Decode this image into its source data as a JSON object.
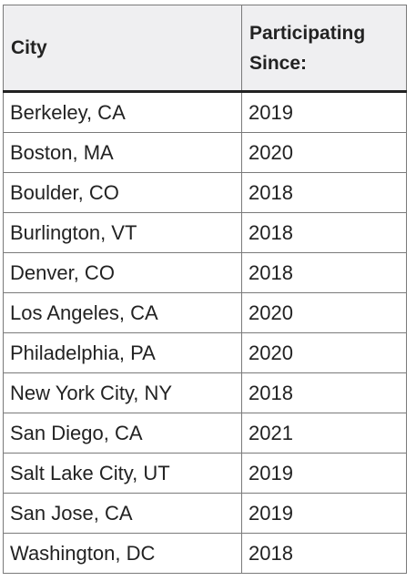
{
  "table": {
    "headers": [
      "City",
      "Participating Since:"
    ],
    "rows": [
      {
        "city": "Berkeley, CA",
        "since": "2019"
      },
      {
        "city": "Boston, MA",
        "since": "2020"
      },
      {
        "city": "Boulder, CO",
        "since": "2018"
      },
      {
        "city": "Burlington, VT",
        "since": "2018"
      },
      {
        "city": "Denver, CO",
        "since": "2018"
      },
      {
        "city": "Los Angeles, CA",
        "since": "2020"
      },
      {
        "city": "Philadelphia, PA",
        "since": "2020"
      },
      {
        "city": "New York City, NY",
        "since": "2018"
      },
      {
        "city": "San Diego, CA",
        "since": "2021"
      },
      {
        "city": "Salt Lake City, UT",
        "since": "2019"
      },
      {
        "city": "San Jose, CA",
        "since": "2019"
      },
      {
        "city": "Washington, DC",
        "since": "2018"
      }
    ]
  }
}
